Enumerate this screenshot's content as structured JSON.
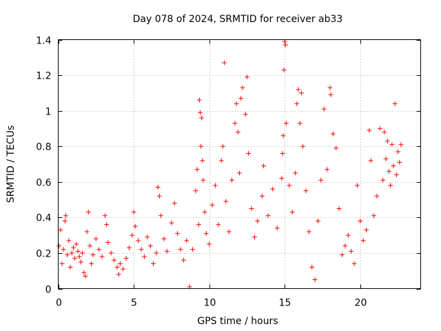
{
  "chart_data": {
    "type": "scatter",
    "title": "Day 078 of 2024, SRMTID for receiver ab33",
    "xlabel": "GPS time / hours",
    "ylabel": "SRMTID / TECUs",
    "xlim": [
      0,
      24
    ],
    "ylim": [
      0,
      1.4
    ],
    "xticks": [
      0,
      5,
      10,
      15,
      20
    ],
    "xtick_labels": [
      "0",
      "5",
      "10",
      "15",
      "20"
    ],
    "yticks": [
      0,
      0.2,
      0.4,
      0.6,
      0.8,
      1,
      1.2,
      1.4
    ],
    "ytick_labels": [
      "0",
      "0.2",
      "0.4",
      "0.6",
      "0.8",
      "1",
      "1.2",
      "1.4"
    ],
    "grid": true,
    "legend": "none",
    "marker": "+",
    "color": "#ff0000",
    "series": [
      {
        "name": "SRMTID",
        "points": [
          [
            0.05,
            0.24
          ],
          [
            0.15,
            0.33
          ],
          [
            0.25,
            0.14
          ],
          [
            0.35,
            0.22
          ],
          [
            0.45,
            0.38
          ],
          [
            0.5,
            0.41
          ],
          [
            0.6,
            0.19
          ],
          [
            0.7,
            0.27
          ],
          [
            0.8,
            0.12
          ],
          [
            0.9,
            0.2
          ],
          [
            1.0,
            0.23
          ],
          [
            1.1,
            0.17
          ],
          [
            1.2,
            0.25
          ],
          [
            1.3,
            0.21
          ],
          [
            1.4,
            0.18
          ],
          [
            1.5,
            0.15
          ],
          [
            1.6,
            0.2
          ],
          [
            1.7,
            0.09
          ],
          [
            1.8,
            0.07
          ],
          [
            1.9,
            0.32
          ],
          [
            2.0,
            0.43
          ],
          [
            2.1,
            0.24
          ],
          [
            2.2,
            0.14
          ],
          [
            2.3,
            0.19
          ],
          [
            2.5,
            0.28
          ],
          [
            2.7,
            0.22
          ],
          [
            2.9,
            0.18
          ],
          [
            3.1,
            0.41
          ],
          [
            3.2,
            0.36
          ],
          [
            3.3,
            0.26
          ],
          [
            3.5,
            0.2
          ],
          [
            3.7,
            0.16
          ],
          [
            3.9,
            0.12
          ],
          [
            4.0,
            0.08
          ],
          [
            4.1,
            0.14
          ],
          [
            4.3,
            0.11
          ],
          [
            4.5,
            0.17
          ],
          [
            4.7,
            0.23
          ],
          [
            4.9,
            0.3
          ],
          [
            5.0,
            0.43
          ],
          [
            5.1,
            0.35
          ],
          [
            5.3,
            0.27
          ],
          [
            5.5,
            0.22
          ],
          [
            5.7,
            0.18
          ],
          [
            5.9,
            0.29
          ],
          [
            6.1,
            0.24
          ],
          [
            6.3,
            0.14
          ],
          [
            6.5,
            0.2
          ],
          [
            6.6,
            0.57
          ],
          [
            6.7,
            0.52
          ],
          [
            6.8,
            0.41
          ],
          [
            7.0,
            0.28
          ],
          [
            7.2,
            0.21
          ],
          [
            7.5,
            0.37
          ],
          [
            7.7,
            0.48
          ],
          [
            7.9,
            0.31
          ],
          [
            8.1,
            0.22
          ],
          [
            8.3,
            0.16
          ],
          [
            8.5,
            0.27
          ],
          [
            8.7,
            0.01
          ],
          [
            8.9,
            0.22
          ],
          [
            9.1,
            0.55
          ],
          [
            9.2,
            0.67
          ],
          [
            9.3,
            0.36
          ],
          [
            9.35,
            1.06
          ],
          [
            9.4,
            0.99
          ],
          [
            9.45,
            0.8
          ],
          [
            9.5,
            0.96
          ],
          [
            9.55,
            0.72
          ],
          [
            9.6,
            0.61
          ],
          [
            9.7,
            0.43
          ],
          [
            9.8,
            0.31
          ],
          [
            10.0,
            0.25
          ],
          [
            10.2,
            0.47
          ],
          [
            10.4,
            0.58
          ],
          [
            10.6,
            0.36
          ],
          [
            10.8,
            0.72
          ],
          [
            10.9,
            0.8
          ],
          [
            11.0,
            1.27
          ],
          [
            11.1,
            0.49
          ],
          [
            11.3,
            0.32
          ],
          [
            11.5,
            0.61
          ],
          [
            11.7,
            0.93
          ],
          [
            11.8,
            1.04
          ],
          [
            11.9,
            0.88
          ],
          [
            12.0,
            0.65
          ],
          [
            12.1,
            1.07
          ],
          [
            12.2,
            1.13
          ],
          [
            12.4,
            0.98
          ],
          [
            12.5,
            1.19
          ],
          [
            12.6,
            0.76
          ],
          [
            12.8,
            0.45
          ],
          [
            13.0,
            0.29
          ],
          [
            13.2,
            0.38
          ],
          [
            13.5,
            0.52
          ],
          [
            13.6,
            0.69
          ],
          [
            13.9,
            0.41
          ],
          [
            14.2,
            0.56
          ],
          [
            14.5,
            0.34
          ],
          [
            14.8,
            0.62
          ],
          [
            14.85,
            0.76
          ],
          [
            14.9,
            0.86
          ],
          [
            14.95,
            1.23
          ],
          [
            15.0,
            1.39
          ],
          [
            15.05,
            1.37
          ],
          [
            15.1,
            0.93
          ],
          [
            15.3,
            0.58
          ],
          [
            15.5,
            0.43
          ],
          [
            15.7,
            0.65
          ],
          [
            15.8,
            1.04
          ],
          [
            15.9,
            1.12
          ],
          [
            16.0,
            0.93
          ],
          [
            16.1,
            1.1
          ],
          [
            16.2,
            0.8
          ],
          [
            16.4,
            0.55
          ],
          [
            16.6,
            0.32
          ],
          [
            16.8,
            0.12
          ],
          [
            17.0,
            0.05
          ],
          [
            17.2,
            0.38
          ],
          [
            17.4,
            0.61
          ],
          [
            17.6,
            1.01
          ],
          [
            17.8,
            0.67
          ],
          [
            18.0,
            1.13
          ],
          [
            18.05,
            1.09
          ],
          [
            18.2,
            0.87
          ],
          [
            18.4,
            0.79
          ],
          [
            18.6,
            0.45
          ],
          [
            18.8,
            0.19
          ],
          [
            19.0,
            0.24
          ],
          [
            19.2,
            0.3
          ],
          [
            19.4,
            0.21
          ],
          [
            19.6,
            0.14
          ],
          [
            19.8,
            0.58
          ],
          [
            20.0,
            0.38
          ],
          [
            20.2,
            0.27
          ],
          [
            20.4,
            0.33
          ],
          [
            20.6,
            0.89
          ],
          [
            20.7,
            0.72
          ],
          [
            20.9,
            0.41
          ],
          [
            21.1,
            0.52
          ],
          [
            21.3,
            0.9
          ],
          [
            21.5,
            0.61
          ],
          [
            21.6,
            0.88
          ],
          [
            21.7,
            0.73
          ],
          [
            21.8,
            0.83
          ],
          [
            21.9,
            0.66
          ],
          [
            22.0,
            0.58
          ],
          [
            22.1,
            0.81
          ],
          [
            22.2,
            0.69
          ],
          [
            22.3,
            1.04
          ],
          [
            22.4,
            0.64
          ],
          [
            22.5,
            0.77
          ],
          [
            22.6,
            0.71
          ],
          [
            22.7,
            0.81
          ]
        ]
      }
    ]
  }
}
